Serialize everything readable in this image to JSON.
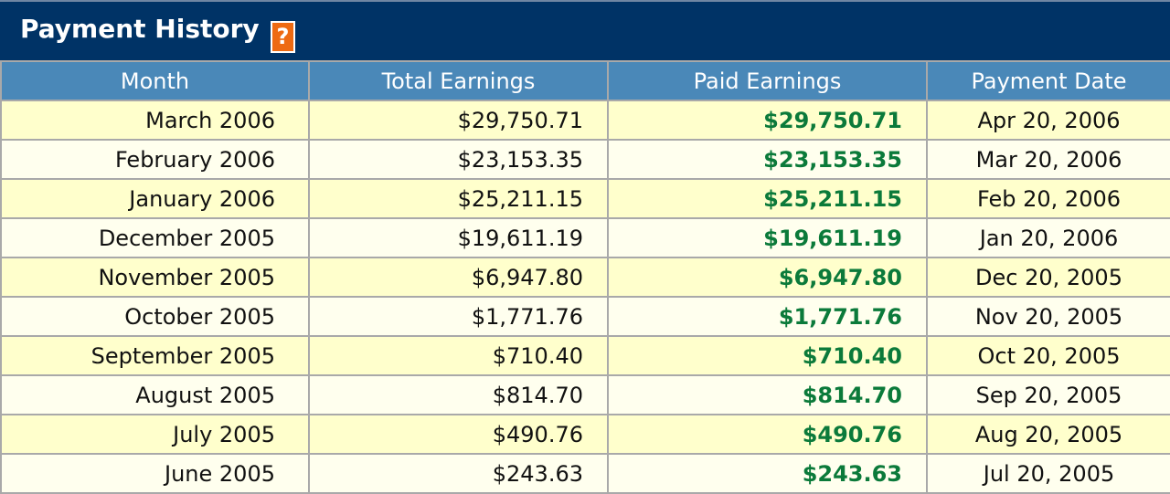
{
  "panel": {
    "title": "Payment History",
    "help_label": "?"
  },
  "table": {
    "headers": [
      "Month",
      "Total Earnings",
      "Paid Earnings",
      "Payment Date"
    ],
    "rows": [
      {
        "month": "March 2006",
        "total": "$29,750.71",
        "paid": "$29,750.71",
        "date": "Apr 20, 2006"
      },
      {
        "month": "February 2006",
        "total": "$23,153.35",
        "paid": "$23,153.35",
        "date": "Mar 20, 2006"
      },
      {
        "month": "January 2006",
        "total": "$25,211.15",
        "paid": "$25,211.15",
        "date": "Feb 20, 2006"
      },
      {
        "month": "December 2005",
        "total": "$19,611.19",
        "paid": "$19,611.19",
        "date": "Jan 20, 2006"
      },
      {
        "month": "November 2005",
        "total": "$6,947.80",
        "paid": "$6,947.80",
        "date": "Dec 20, 2005"
      },
      {
        "month": "October 2005",
        "total": "$1,771.76",
        "paid": "$1,771.76",
        "date": "Nov 20, 2005"
      },
      {
        "month": "September 2005",
        "total": "$710.40",
        "paid": "$710.40",
        "date": "Oct 20, 2005"
      },
      {
        "month": "August 2005",
        "total": "$814.70",
        "paid": "$814.70",
        "date": "Sep 20, 2005"
      },
      {
        "month": "July 2005",
        "total": "$490.76",
        "paid": "$490.76",
        "date": "Aug 20, 2005"
      },
      {
        "month": "June 2005",
        "total": "$243.63",
        "paid": "$243.63",
        "date": "Jul 20, 2005"
      }
    ]
  },
  "colors": {
    "title_bar": "#003366",
    "header_row": "#4a88b8",
    "row_odd": "#ffffcc",
    "row_even": "#ffffee",
    "paid_text": "#0b7a3a",
    "help_icon": "#ee6a12"
  },
  "icons": {
    "help": "help-icon"
  }
}
